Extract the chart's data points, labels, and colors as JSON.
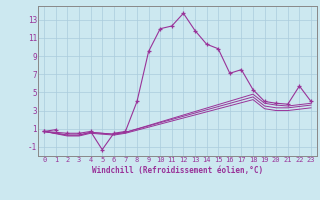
{
  "xlabel": "Windchill (Refroidissement éolien,°C)",
  "background_color": "#cce8f0",
  "grid_color": "#aaccdd",
  "line_color": "#993399",
  "spine_color": "#888888",
  "xlim": [
    -0.5,
    23.5
  ],
  "ylim": [
    -2.0,
    14.5
  ],
  "xticks": [
    0,
    1,
    2,
    3,
    4,
    5,
    6,
    7,
    8,
    9,
    10,
    11,
    12,
    13,
    14,
    15,
    16,
    17,
    18,
    19,
    20,
    21,
    22,
    23
  ],
  "yticks": [
    -1,
    1,
    3,
    5,
    7,
    9,
    11,
    13
  ],
  "series_with_markers": [
    {
      "x": [
        0,
        1
      ],
      "y": [
        0.7,
        0.9
      ]
    },
    {
      "x": [
        0,
        2,
        3,
        4,
        5,
        6,
        7,
        8,
        9,
        10,
        11,
        12,
        13,
        14,
        15,
        16,
        17,
        18,
        19,
        20,
        21,
        22,
        23
      ],
      "y": [
        0.7,
        0.5,
        0.5,
        0.7,
        -1.3,
        0.5,
        0.7,
        4.0,
        9.5,
        12.0,
        12.3,
        13.7,
        11.8,
        10.3,
        9.8,
        7.1,
        7.5,
        5.3,
        4.0,
        3.8,
        3.7,
        5.7,
        4.0
      ]
    }
  ],
  "series_plain": [
    {
      "x": [
        0,
        2,
        3,
        4,
        6,
        7,
        18,
        19,
        20,
        21,
        23
      ],
      "y": [
        0.7,
        0.3,
        0.3,
        0.6,
        0.4,
        0.6,
        4.8,
        3.8,
        3.6,
        3.5,
        3.8
      ]
    },
    {
      "x": [
        0,
        2,
        3,
        4,
        6,
        7,
        18,
        19,
        20,
        21,
        23
      ],
      "y": [
        0.7,
        0.3,
        0.3,
        0.6,
        0.4,
        0.6,
        4.5,
        3.5,
        3.3,
        3.3,
        3.6
      ]
    },
    {
      "x": [
        0,
        2,
        3,
        4,
        6,
        7,
        18,
        19,
        20,
        21,
        23
      ],
      "y": [
        0.7,
        0.2,
        0.2,
        0.5,
        0.3,
        0.5,
        4.2,
        3.2,
        3.0,
        3.0,
        3.3
      ]
    }
  ]
}
